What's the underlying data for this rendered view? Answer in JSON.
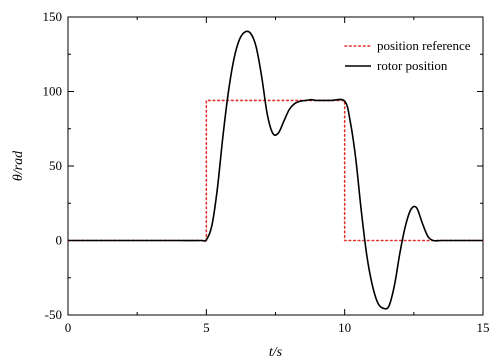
{
  "chart_data": {
    "type": "line",
    "xlabel": "t/s",
    "ylabel": "θ/rad",
    "xlim": [
      0,
      15
    ],
    "ylim": [
      -50,
      150
    ],
    "xticks": [
      0,
      5,
      10,
      15
    ],
    "yticks": [
      -50,
      0,
      50,
      100,
      150
    ],
    "grid": false,
    "legend_position": "top-right",
    "series": [
      {
        "name": "position reference",
        "color": "#e0312b",
        "style": "dotted",
        "x": [
          0,
          5,
          5,
          10,
          10,
          15
        ],
        "y": [
          0,
          0,
          94,
          94,
          0,
          0
        ]
      },
      {
        "name": "rotor position",
        "color": "#000000",
        "style": "solid",
        "x": [
          0,
          1,
          2,
          3,
          4,
          4.8,
          5.0,
          5.2,
          5.4,
          5.6,
          5.8,
          6.0,
          6.2,
          6.4,
          6.6,
          6.8,
          7.0,
          7.2,
          7.4,
          7.6,
          7.8,
          8.0,
          8.2,
          8.4,
          8.6,
          8.8,
          9.0,
          9.5,
          10.0,
          10.2,
          10.4,
          10.6,
          10.8,
          11.0,
          11.2,
          11.4,
          11.6,
          11.8,
          12.0,
          12.2,
          12.4,
          12.6,
          12.8,
          13.0,
          13.2,
          13.5,
          14,
          15
        ],
        "y": [
          0,
          0,
          0,
          0,
          0,
          0,
          0.5,
          10,
          35,
          70,
          100,
          122,
          135,
          140,
          139,
          130,
          110,
          85,
          72,
          72,
          80,
          88,
          92,
          93.5,
          94,
          94.5,
          94,
          94,
          93.5,
          80,
          55,
          20,
          -10,
          -30,
          -42,
          -45.5,
          -44,
          -30,
          -8,
          10,
          21,
          22,
          12,
          3,
          0,
          0,
          0,
          0
        ]
      }
    ]
  }
}
